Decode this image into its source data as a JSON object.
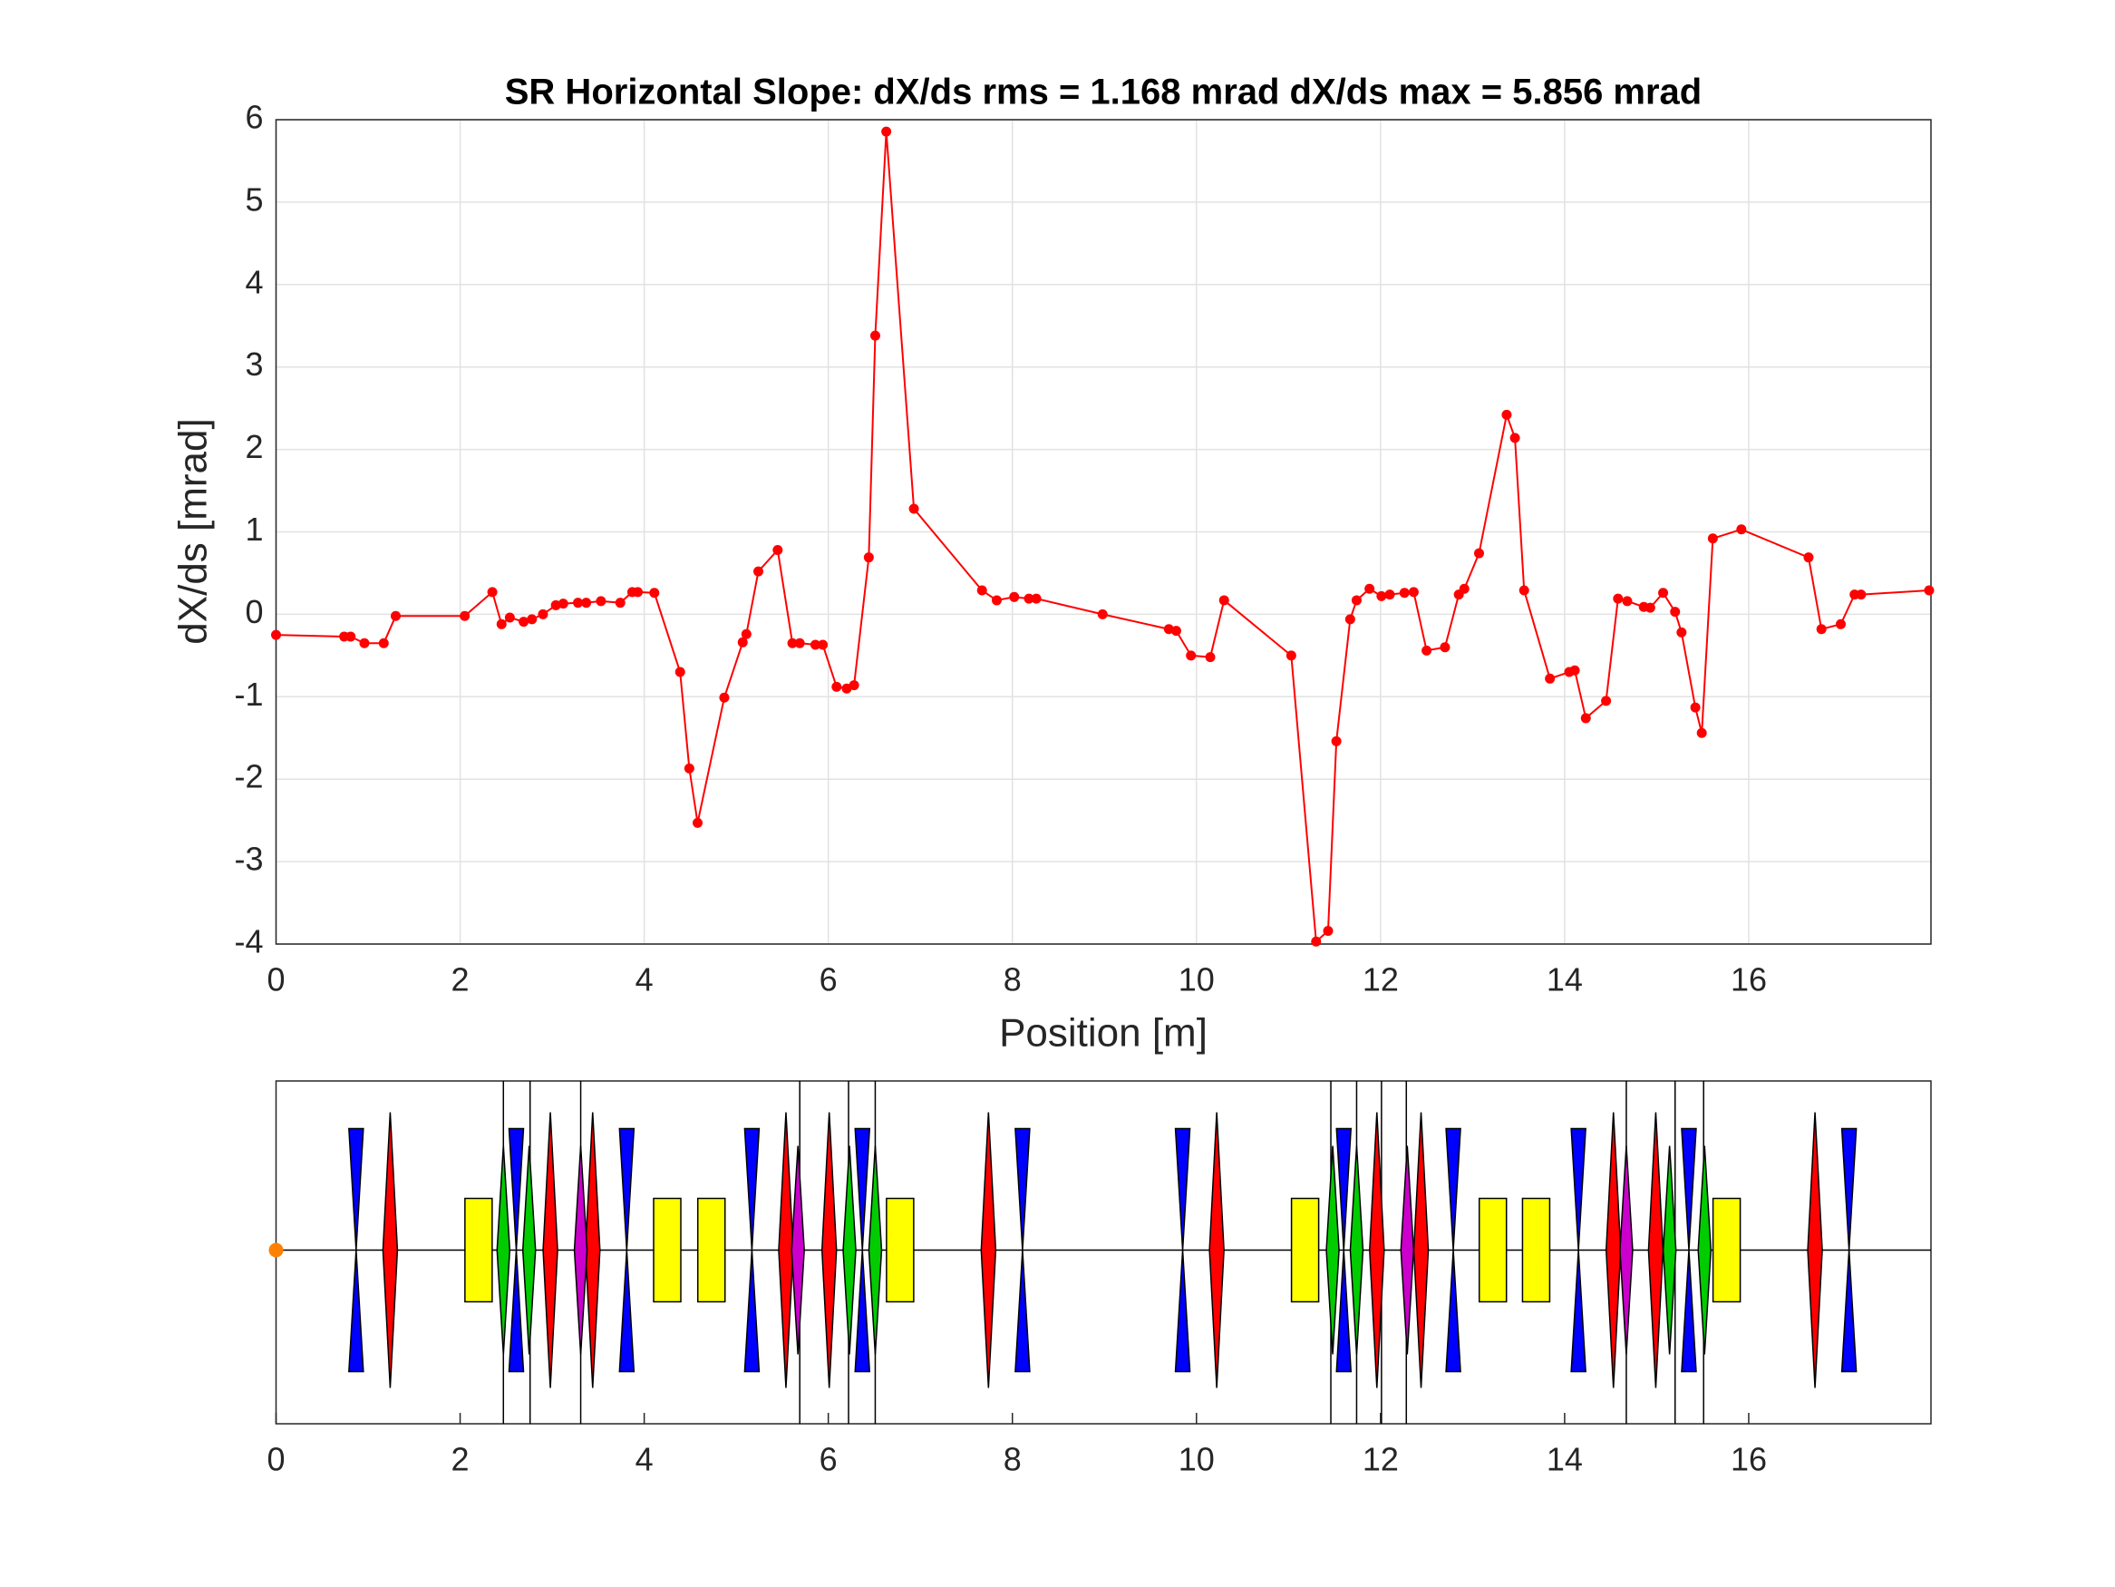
{
  "chart_data": [
    {
      "type": "line",
      "title": "SR Horizontal Slope: dX/ds rms  = 1.168 mrad  dX/ds max = 5.856 mrad",
      "x_label": "Position [m]",
      "y_label": "dX/ds [mrad]",
      "xlim": [
        0,
        17.98
      ],
      "ylim": [
        -4,
        6
      ],
      "xticks": [
        0,
        2,
        4,
        6,
        8,
        10,
        12,
        14,
        16
      ],
      "yticks": [
        -4,
        -3,
        -2,
        -1,
        0,
        1,
        2,
        3,
        4,
        5,
        6
      ],
      "grid": true,
      "series": [
        {
          "color": "#ff0000",
          "x": [
            0,
            0.74,
            0.81,
            0.96,
            1.17,
            1.3,
            2.05,
            2.35,
            2.45,
            2.54,
            2.69,
            2.78,
            2.9,
            3.04,
            3.12,
            3.28,
            3.37,
            3.53,
            3.74,
            3.87,
            3.93,
            4.11,
            4.39,
            4.49,
            4.58,
            4.87,
            5.07,
            5.11,
            5.24,
            5.45,
            5.61,
            5.69,
            5.86,
            5.94,
            6.09,
            6.2,
            6.28,
            6.44,
            6.51,
            6.63,
            6.93,
            7.67,
            7.83,
            8.02,
            8.18,
            8.26,
            8.98,
            9.7,
            9.78,
            9.94,
            10.15,
            10.3,
            11.03,
            11.3,
            11.43,
            11.52,
            11.67,
            11.74,
            11.88,
            12.01,
            12.1,
            12.26,
            12.36,
            12.5,
            12.7,
            12.85,
            12.91,
            13.07,
            13.37,
            13.46,
            13.56,
            13.84,
            14.05,
            14.11,
            14.23,
            14.45,
            14.58,
            14.68,
            14.86,
            14.93,
            15.07,
            15.2,
            15.27,
            15.42,
            15.49,
            15.61,
            15.92,
            16.65,
            16.79,
            17.0,
            17.15,
            17.22,
            17.96
          ],
          "values": [
            -0.25,
            -0.27,
            -0.27,
            -0.35,
            -0.35,
            -0.02,
            -0.02,
            0.27,
            -0.12,
            -0.04,
            -0.09,
            -0.06,
            0.0,
            0.11,
            0.13,
            0.14,
            0.14,
            0.16,
            0.14,
            0.27,
            0.27,
            0.26,
            -0.7,
            -1.87,
            -2.53,
            -1.01,
            -0.34,
            -0.24,
            0.52,
            0.78,
            -0.35,
            -0.35,
            -0.37,
            -0.37,
            -0.88,
            -0.9,
            -0.86,
            0.69,
            3.38,
            5.856,
            1.28,
            0.29,
            0.17,
            0.21,
            0.19,
            0.19,
            0.0,
            -0.18,
            -0.2,
            -0.5,
            -0.52,
            0.17,
            -0.5,
            -3.97,
            -3.84,
            -1.54,
            -0.06,
            0.17,
            0.31,
            0.22,
            0.24,
            0.26,
            0.27,
            -0.44,
            -0.4,
            0.24,
            0.31,
            0.74,
            2.42,
            2.14,
            0.29,
            -0.78,
            -0.7,
            -0.68,
            -1.26,
            -1.05,
            0.19,
            0.16,
            0.09,
            0.08,
            0.26,
            0.03,
            -0.22,
            -1.13,
            -1.44,
            0.92,
            1.03,
            0.69,
            -0.18,
            -0.12,
            0.24,
            0.24,
            0.29
          ]
        }
      ]
    },
    {
      "type": "lattice",
      "xlim": [
        0,
        17.98
      ],
      "xticks": [
        0,
        2,
        4,
        6,
        8,
        10,
        12,
        14,
        16
      ],
      "origin": {
        "x": 0,
        "color": "#ff8000"
      },
      "markers": {
        "color": "#000000",
        "x": [
          2.47,
          2.76,
          3.31,
          5.69,
          6.22,
          6.51,
          11.46,
          11.74,
          12.01,
          12.28,
          14.67,
          15.2,
          15.51
        ]
      },
      "focusing": {
        "color": "#0000ff",
        "x": [
          0.87,
          2.61,
          3.81,
          5.17,
          6.37,
          8.11,
          9.85,
          11.6,
          12.79,
          14.15,
          15.35,
          17.09
        ]
      },
      "defocusing": {
        "color": "#ff0000",
        "x": [
          1.24,
          2.98,
          3.44,
          5.54,
          6.01,
          7.74,
          10.22,
          11.96,
          12.44,
          14.53,
          14.99,
          16.72
        ]
      },
      "dipoles": {
        "color": "#ffff00",
        "x": [
          2.2,
          4.25,
          4.73,
          6.78,
          11.18,
          13.22,
          13.69,
          15.76
        ]
      },
      "sextupoles": {
        "color": "#00cc00",
        "x": [
          2.47,
          2.75,
          6.23,
          6.51,
          11.48,
          11.74,
          15.14,
          15.52
        ]
      },
      "octupoles": {
        "color": "#cc00cc",
        "x": [
          3.31,
          5.67,
          12.29,
          14.67
        ]
      }
    }
  ]
}
